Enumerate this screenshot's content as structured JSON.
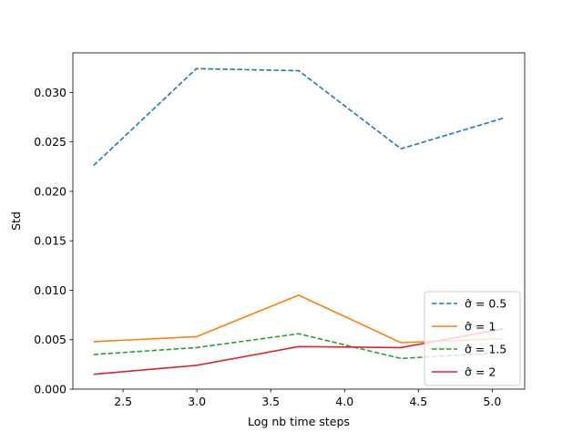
{
  "chart_data": {
    "type": "line",
    "title": "",
    "xlabel": "Log nb time  steps",
    "ylabel": "Std",
    "xlim": [
      2.16,
      5.22
    ],
    "ylim": [
      0.0,
      0.034
    ],
    "x_ticks": [
      2.5,
      3.0,
      3.5,
      4.0,
      4.5,
      5.0
    ],
    "x_tick_labels": [
      "2.5",
      "3.0",
      "3.5",
      "4.0",
      "4.5",
      "5.0"
    ],
    "y_ticks": [
      0.0,
      0.005,
      0.01,
      0.015,
      0.02,
      0.025,
      0.03
    ],
    "y_tick_labels": [
      "0.000",
      "0.005",
      "0.010",
      "0.015",
      "0.020",
      "0.025",
      "0.030"
    ],
    "x": [
      2.3,
      2.996,
      3.689,
      4.382,
      5.075
    ],
    "grid": false,
    "legend_position": "lower-right",
    "series": [
      {
        "name_prefix": "σ̂ =",
        "name_value": "0.5",
        "values": [
          0.0226,
          0.0324,
          0.0322,
          0.0243,
          0.0274
        ],
        "color": "#1f77b4",
        "dashed": true
      },
      {
        "name_prefix": "σ̂ =",
        "name_value": "1",
        "values": [
          0.0048,
          0.0053,
          0.0095,
          0.0047,
          0.0051
        ],
        "color": "#ff7f0e",
        "dashed": false
      },
      {
        "name_prefix": "σ̂ =",
        "name_value": "1.5",
        "values": [
          0.0035,
          0.0042,
          0.0056,
          0.0031,
          0.0037
        ],
        "color": "#2ca02c",
        "dashed": true
      },
      {
        "name_prefix": "σ̂ =",
        "name_value": "2",
        "values": [
          0.0015,
          0.0024,
          0.0043,
          0.0042,
          0.0061
        ],
        "color": "#d62728",
        "dashed": false
      }
    ]
  }
}
